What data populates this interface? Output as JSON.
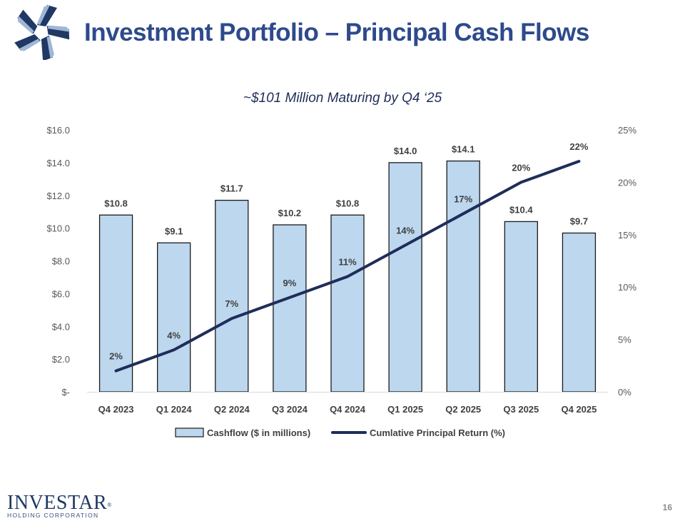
{
  "header": {
    "title": "Investment Portfolio – Principal Cash Flows",
    "logo_icon": "star-swirl-logo"
  },
  "subtitle": "~$101 Million Maturing by Q4 ‘25",
  "colors": {
    "bar_fill": "#bdd7ee",
    "bar_stroke": "#1a1a1a",
    "line": "#1f2d5a",
    "title": "#2e4a8c",
    "axis_text": "#595959"
  },
  "chart_data": {
    "type": "bar+line",
    "categories": [
      "Q4 2023",
      "Q1 2024",
      "Q2 2024",
      "Q3 2024",
      "Q4 2024",
      "Q1 2025",
      "Q2 2025",
      "Q3 2025",
      "Q4 2025"
    ],
    "series": [
      {
        "name": "Cashflow ($ in millions)",
        "type": "bar",
        "axis": "left",
        "values": [
          10.8,
          9.1,
          11.7,
          10.2,
          10.8,
          14.0,
          14.1,
          10.4,
          9.7
        ],
        "labels": [
          "$10.8",
          "$9.1",
          "$11.7",
          "$10.2",
          "$10.8",
          "$14.0",
          "$14.1",
          "$10.4",
          "$9.7"
        ]
      },
      {
        "name": "Cumlative Principal Return (%)",
        "type": "line",
        "axis": "right",
        "values": [
          2,
          4,
          7,
          9,
          11,
          14,
          17,
          20,
          22
        ],
        "labels": [
          "2%",
          "4%",
          "7%",
          "9%",
          "11%",
          "14%",
          "17%",
          "20%",
          "22%"
        ]
      }
    ],
    "y_left": {
      "min": 0,
      "max": 16,
      "ticks": [
        0,
        2,
        4,
        6,
        8,
        10,
        12,
        14,
        16
      ],
      "tick_labels": [
        "$-",
        "$2.0",
        "$4.0",
        "$6.0",
        "$8.0",
        "$10.0",
        "$12.0",
        "$14.0",
        "$16.0"
      ]
    },
    "y_right": {
      "min": 0,
      "max": 25,
      "ticks": [
        0,
        5,
        10,
        15,
        20,
        25
      ],
      "tick_labels": [
        "0%",
        "5%",
        "10%",
        "15%",
        "20%",
        "25%"
      ]
    },
    "legend": {
      "position": "bottom",
      "entries": [
        "Cashflow ($ in millions)",
        "Cumlative Principal Return (%)"
      ]
    },
    "grid": false
  },
  "footer": {
    "brand_name": "INVESTAR",
    "trademark": "®",
    "brand_sub": "HOLDING CORPORATION",
    "page_number": "16"
  }
}
